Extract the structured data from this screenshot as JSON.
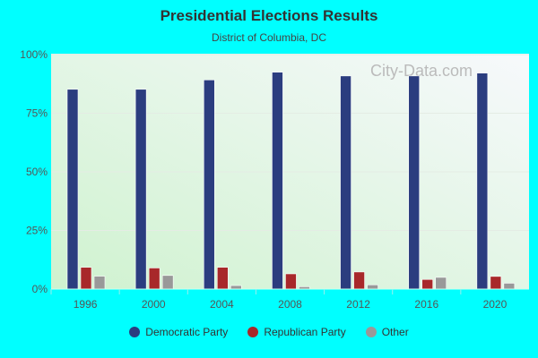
{
  "chart_data": {
    "type": "bar",
    "title": "Presidential Elections Results",
    "subtitle": "District of Columbia, DC",
    "categories": [
      "1996",
      "2000",
      "2004",
      "2008",
      "2012",
      "2016",
      "2020"
    ],
    "series": [
      {
        "name": "Democratic Party",
        "color": "#2b3d7f",
        "values": [
          85.2,
          85.2,
          89.2,
          92.5,
          90.9,
          90.9,
          92.1
        ]
      },
      {
        "name": "Republican Party",
        "color": "#a8282a",
        "values": [
          9.3,
          9.0,
          9.3,
          6.5,
          7.3,
          4.1,
          5.4
        ]
      },
      {
        "name": "Other",
        "color": "#999999",
        "values": [
          5.5,
          5.8,
          1.5,
          1.0,
          1.8,
          5.0,
          2.5
        ]
      }
    ],
    "yticks": [
      "0%",
      "25%",
      "50%",
      "75%",
      "100%"
    ],
    "ylim": [
      0,
      100
    ],
    "grid": true,
    "legend": "bottom",
    "watermark": "City-Data.com"
  }
}
